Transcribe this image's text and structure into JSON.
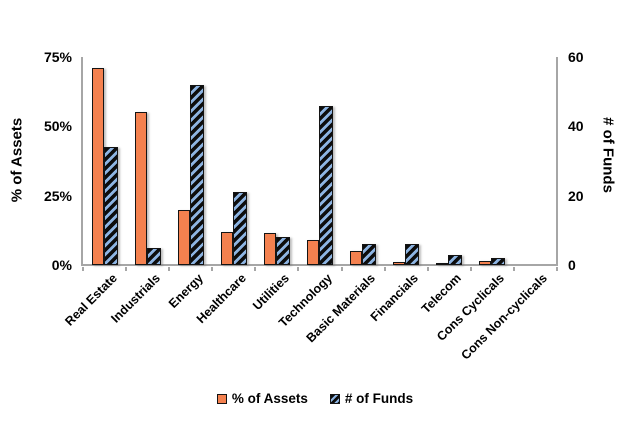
{
  "colors": {
    "bar_orange": "#F4814F",
    "stripe_blue": "#8DB4E2",
    "bar_border": "#141414",
    "axis_gray": "#A6A6A6",
    "text": "#000000"
  },
  "chart_data": {
    "type": "bar",
    "title": "",
    "grid": "off",
    "legend_position": "bottom",
    "categories": [
      "Real Estate",
      "Industrials",
      "Energy",
      "Healthcare",
      "Utilities",
      "Technology",
      "Basic Materials",
      "Financials",
      "Telecom",
      "Cons Cyclicals",
      "Cons Non-cyclicals"
    ],
    "series": [
      {
        "name": "% of Assets",
        "axis": "left",
        "style": "solid-orange",
        "values": [
          71,
          55,
          20,
          12,
          11.5,
          9,
          5,
          1,
          0.7,
          1.5,
          0
        ]
      },
      {
        "name": "# of Funds",
        "axis": "right",
        "style": "black-blue-diagonal-hatch",
        "values": [
          34,
          5,
          52,
          21,
          8,
          46,
          6,
          6,
          3,
          2,
          0
        ]
      }
    ],
    "left_axis": {
      "label": "% of Assets",
      "min": 0,
      "max": 75,
      "ticks": [
        {
          "label": "75%",
          "value": 75
        },
        {
          "label": "50%",
          "value": 50
        },
        {
          "label": "25%",
          "value": 25
        },
        {
          "label": "0%",
          "value": 0
        }
      ]
    },
    "right_axis": {
      "label": "# of Funds",
      "min": 0,
      "max": 60,
      "ticks": [
        {
          "label": "60",
          "value": 60
        },
        {
          "label": "40",
          "value": 40
        },
        {
          "label": "20",
          "value": 20
        },
        {
          "label": "0",
          "value": 0
        }
      ]
    },
    "legend": [
      "% of Assets",
      "# of Funds"
    ]
  }
}
